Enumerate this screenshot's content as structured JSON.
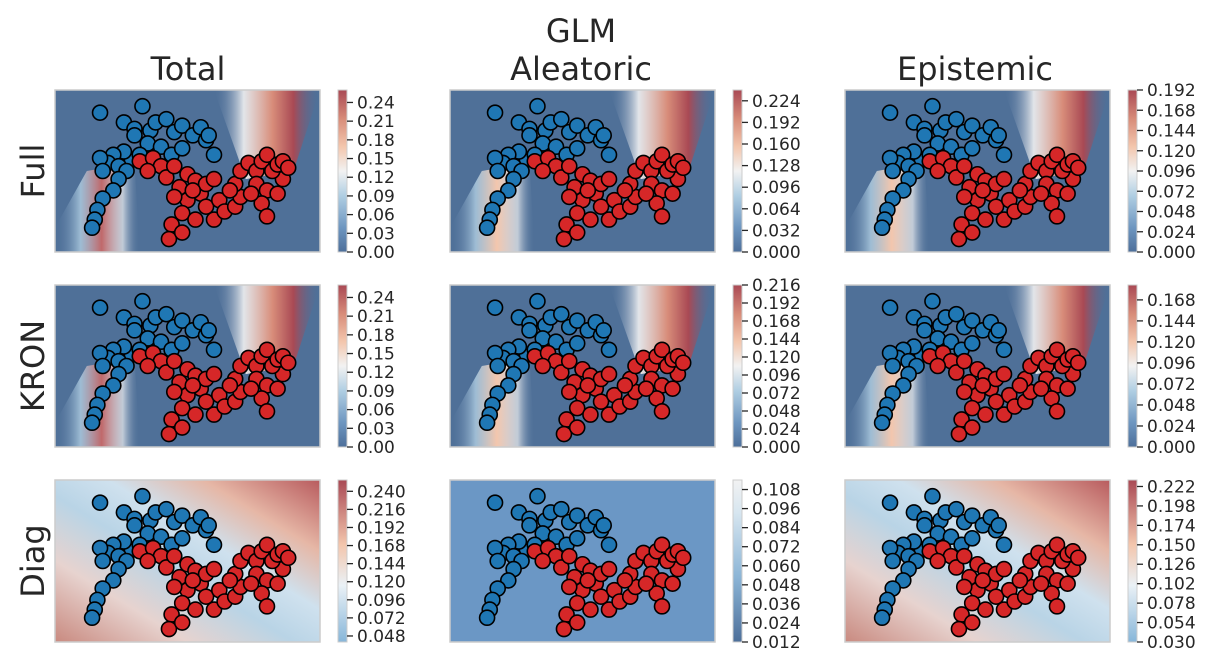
{
  "chart_data": {
    "type": "heatmap",
    "suptitle": "GLM",
    "column_titles": [
      "Total",
      "Aleatoric",
      "Epistemic"
    ],
    "row_labels": [
      "Full",
      "KRON",
      "Diag"
    ],
    "colormap": "RdBu_r",
    "point_colors": {
      "class_0": "#1f77b4",
      "class_1": "#d62728"
    },
    "panels": [
      {
        "row": 0,
        "col": 0,
        "pattern": "band",
        "vmin": 0.0,
        "vmax": 0.26,
        "colorbar_ticks": [
          "0.00",
          "0.03",
          "0.06",
          "0.09",
          "0.12",
          "0.15",
          "0.18",
          "0.21",
          "0.24"
        ]
      },
      {
        "row": 0,
        "col": 1,
        "pattern": "band",
        "vmin": 0.0,
        "vmax": 0.24,
        "colorbar_ticks": [
          "0.000",
          "0.032",
          "0.064",
          "0.096",
          "0.128",
          "0.160",
          "0.192",
          "0.224"
        ]
      },
      {
        "row": 0,
        "col": 2,
        "pattern": "band",
        "vmin": 0.0,
        "vmax": 0.192,
        "colorbar_ticks": [
          "0.000",
          "0.024",
          "0.048",
          "0.072",
          "0.096",
          "0.120",
          "0.144",
          "0.168",
          "0.192"
        ]
      },
      {
        "row": 1,
        "col": 0,
        "pattern": "band",
        "vmin": 0.0,
        "vmax": 0.26,
        "colorbar_ticks": [
          "0.00",
          "0.03",
          "0.06",
          "0.09",
          "0.12",
          "0.15",
          "0.18",
          "0.21",
          "0.24"
        ]
      },
      {
        "row": 1,
        "col": 1,
        "pattern": "band",
        "vmin": 0.0,
        "vmax": 0.216,
        "colorbar_ticks": [
          "0.000",
          "0.024",
          "0.048",
          "0.072",
          "0.096",
          "0.120",
          "0.144",
          "0.168",
          "0.192",
          "0.216"
        ]
      },
      {
        "row": 1,
        "col": 2,
        "pattern": "band",
        "vmin": 0.0,
        "vmax": 0.185,
        "colorbar_ticks": [
          "0.000",
          "0.024",
          "0.048",
          "0.072",
          "0.096",
          "0.120",
          "0.144",
          "0.168"
        ]
      },
      {
        "row": 2,
        "col": 0,
        "pattern": "diag",
        "vmin": 0.04,
        "vmax": 0.255,
        "colorbar_ticks": [
          "0.048",
          "0.072",
          "0.096",
          "0.120",
          "0.144",
          "0.168",
          "0.192",
          "0.216",
          "0.240"
        ]
      },
      {
        "row": 2,
        "col": 1,
        "pattern": "flat",
        "vmin": 0.012,
        "vmax": 0.114,
        "colorbar_ticks": [
          "0.012",
          "0.024",
          "0.036",
          "0.048",
          "0.060",
          "0.072",
          "0.084",
          "0.096",
          "0.108"
        ]
      },
      {
        "row": 2,
        "col": 2,
        "pattern": "diag",
        "vmin": 0.03,
        "vmax": 0.23,
        "colorbar_ticks": [
          "0.030",
          "0.054",
          "0.078",
          "0.102",
          "0.126",
          "0.150",
          "0.174",
          "0.198",
          "0.222"
        ]
      }
    ]
  }
}
